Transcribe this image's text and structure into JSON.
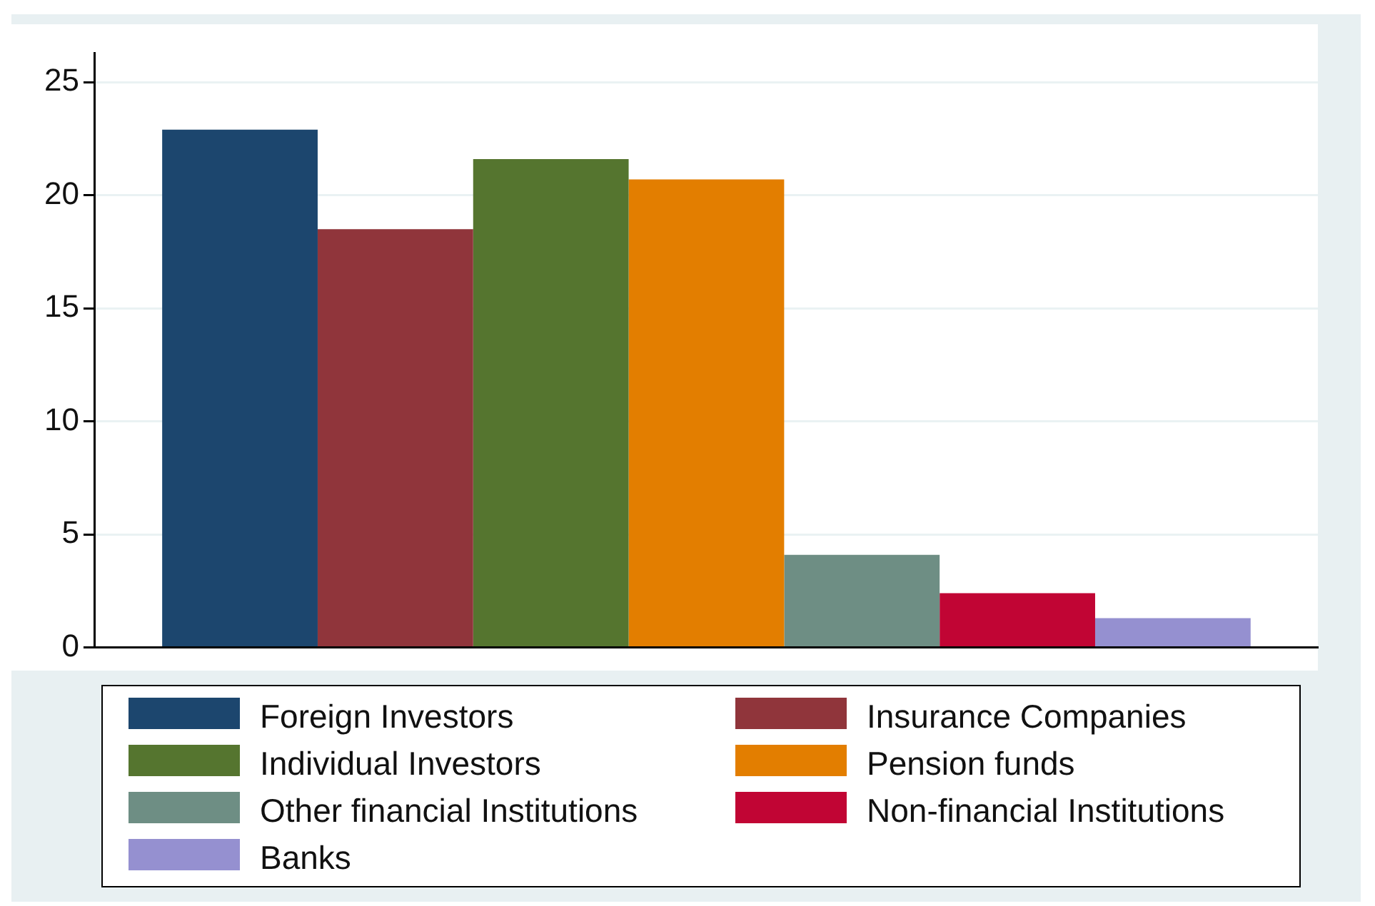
{
  "chart_data": {
    "type": "bar",
    "categories": [
      null
    ],
    "series": [
      {
        "name": "Foreign Investors",
        "color": "#1c466e",
        "values": [
          22.9
        ]
      },
      {
        "name": "Insurance Companies",
        "color": "#90353b",
        "values": [
          18.5
        ]
      },
      {
        "name": "Individual Investors",
        "color": "#55752f",
        "values": [
          21.6
        ]
      },
      {
        "name": "Pension funds",
        "color": "#e37e00",
        "values": [
          20.7
        ]
      },
      {
        "name": "Other financial Institutions",
        "color": "#6e8e84",
        "values": [
          4.1
        ]
      },
      {
        "name": "Non-financial Institutions",
        "color": "#c10534",
        "values": [
          2.4
        ]
      },
      {
        "name": "Banks",
        "color": "#9590d0",
        "values": [
          1.3
        ]
      }
    ],
    "ylim": [
      0,
      26.3
    ],
    "yticks": [
      0,
      5,
      10,
      15,
      20,
      25
    ],
    "grid": "y",
    "legend": "bottom"
  }
}
